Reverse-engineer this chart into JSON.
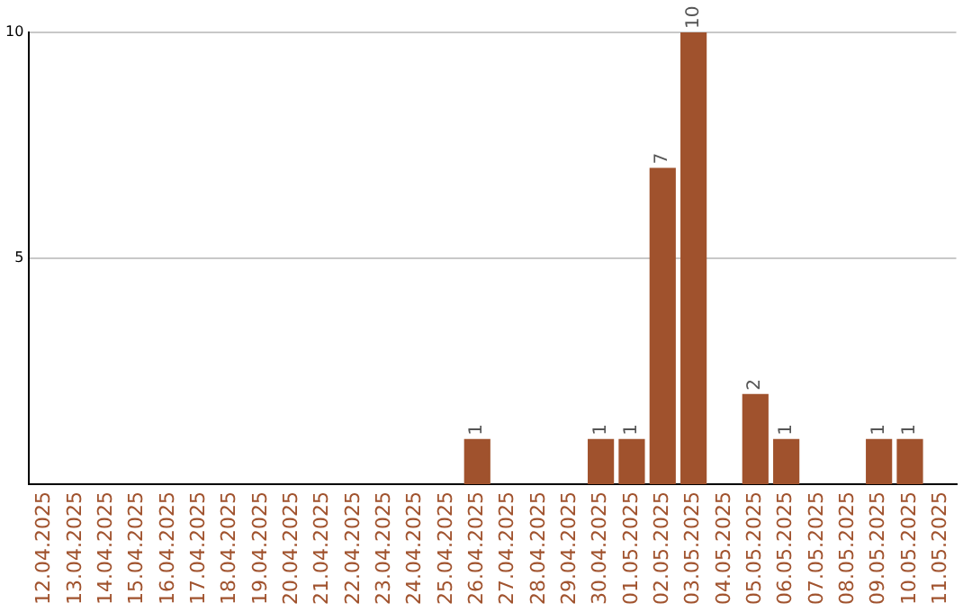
{
  "chart_data": {
    "type": "bar",
    "categories": [
      "12.04.2025",
      "13.04.2025",
      "14.04.2025",
      "15.04.2025",
      "16.04.2025",
      "17.04.2025",
      "18.04.2025",
      "19.04.2025",
      "20.04.2025",
      "21.04.2025",
      "22.04.2025",
      "23.04.2025",
      "24.04.2025",
      "25.04.2025",
      "26.04.2025",
      "27.04.2025",
      "28.04.2025",
      "29.04.2025",
      "30.04.2025",
      "01.05.2025",
      "02.05.2025",
      "03.05.2025",
      "04.05.2025",
      "05.05.2025",
      "06.05.2025",
      "07.05.2025",
      "08.05.2025",
      "09.05.2025",
      "10.05.2025",
      "11.05.2025"
    ],
    "values": [
      0,
      0,
      0,
      0,
      0,
      0,
      0,
      0,
      0,
      0,
      0,
      0,
      0,
      0,
      1,
      0,
      0,
      0,
      1,
      1,
      7,
      10,
      0,
      2,
      1,
      0,
      0,
      1,
      1,
      0
    ],
    "value_labels": [
      null,
      null,
      null,
      null,
      null,
      null,
      null,
      null,
      null,
      null,
      null,
      null,
      null,
      null,
      "1",
      null,
      null,
      null,
      "1",
      "1",
      "7",
      "10",
      null,
      "2",
      "1",
      null,
      null,
      "1",
      "1",
      null
    ],
    "color": "#a0522d",
    "ylim": [
      0,
      10
    ],
    "yticks": [
      5,
      10
    ],
    "grid": "y",
    "legend": false
  }
}
